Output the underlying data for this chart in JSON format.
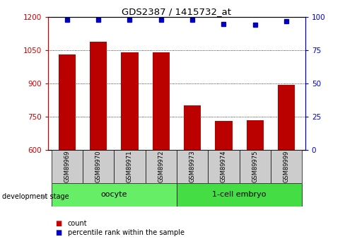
{
  "title": "GDS2387 / 1415732_at",
  "samples": [
    "GSM89969",
    "GSM89970",
    "GSM89971",
    "GSM89972",
    "GSM89973",
    "GSM89974",
    "GSM89975",
    "GSM89999"
  ],
  "counts": [
    1030,
    1090,
    1040,
    1040,
    800,
    730,
    735,
    895
  ],
  "percentile_ranks": [
    98,
    98,
    98,
    98,
    98,
    95,
    94,
    97
  ],
  "ylim_left": [
    600,
    1200
  ],
  "ylim_right": [
    0,
    100
  ],
  "yticks_left": [
    600,
    750,
    900,
    1050,
    1200
  ],
  "yticks_right": [
    0,
    25,
    50,
    75,
    100
  ],
  "bar_color": "#bb0000",
  "dot_color": "#0000bb",
  "bar_width": 0.55,
  "left_tick_color": "#cc0000",
  "right_tick_color": "#0000cc",
  "xlabel_group": "development stage",
  "oocyte_color": "#66ee66",
  "embryo_color": "#44dd44",
  "label_bg": "#cccccc",
  "legend_count_color": "#cc0000",
  "legend_pct_color": "#0000cc"
}
